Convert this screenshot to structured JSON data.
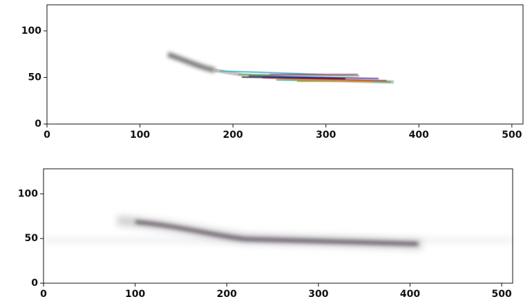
{
  "chart_data": [
    {
      "type": "image",
      "xlim": [
        0,
        512
      ],
      "ylim": [
        0,
        128
      ],
      "xticks": [
        0,
        100,
        200,
        300,
        400,
        500
      ],
      "yticks": [
        0,
        50,
        100
      ]
    },
    {
      "type": "image",
      "xlim": [
        0,
        512
      ],
      "ylim": [
        0,
        128
      ],
      "xticks": [
        0,
        100,
        200,
        300,
        400,
        500
      ],
      "yticks": [
        0,
        50,
        100
      ]
    }
  ]
}
